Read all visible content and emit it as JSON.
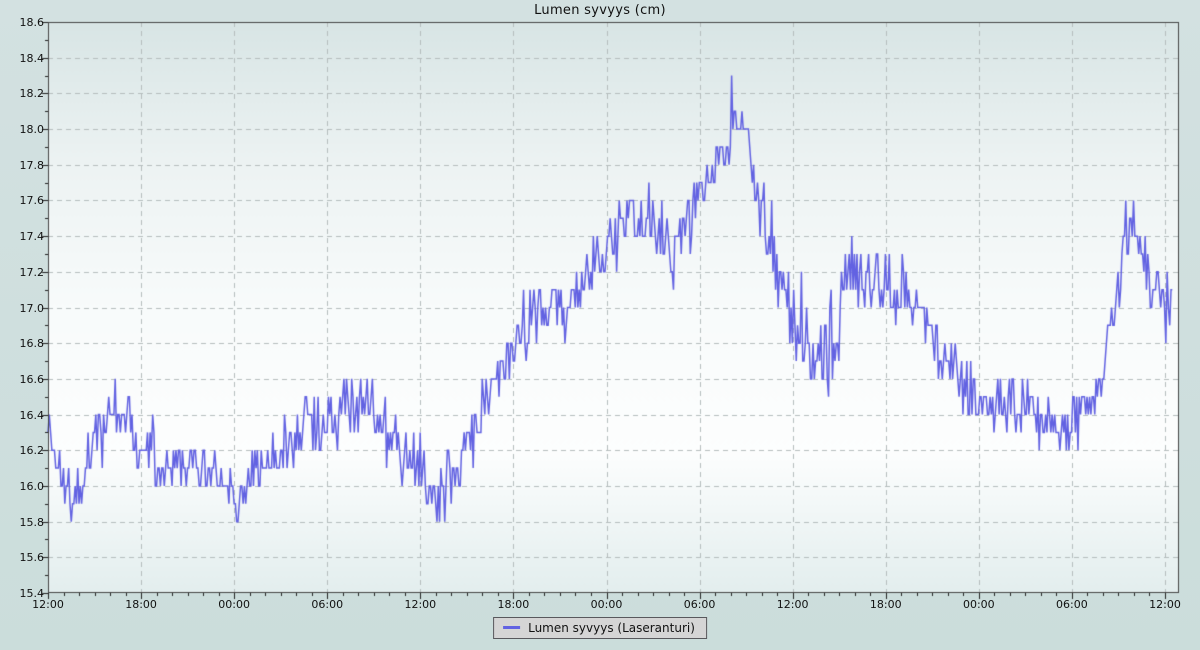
{
  "chart_data": {
    "type": "line",
    "title": "Lumen syvyys (cm)",
    "xlabel": "",
    "ylabel": "",
    "ylim": [
      15.4,
      18.6
    ],
    "y_major_step": 0.2,
    "y_minor_step": 0.1,
    "y_tick_labels": [
      "15.4",
      "15.6",
      "15.8",
      "16.0",
      "16.2",
      "16.4",
      "16.6",
      "16.8",
      "17.0",
      "17.2",
      "17.4",
      "17.6",
      "17.8",
      "18.0",
      "18.2",
      "18.4",
      "18.6"
    ],
    "xlim_hours": [
      0,
      72.9
    ],
    "x_major_step_hours": 6,
    "x_minor_step_hours": 1,
    "x_tick_hours": [
      0,
      6,
      12,
      18,
      24,
      30,
      36,
      42,
      48,
      54,
      60,
      66,
      72
    ],
    "x_tick_labels": [
      "12:00",
      "18:00",
      "00:00",
      "06:00",
      "12:00",
      "18:00",
      "00:00",
      "06:00",
      "12:00",
      "18:00",
      "00:00",
      "06:00",
      "12:00"
    ],
    "grid": {
      "color": "#b5bdbd",
      "dash": [
        5,
        4
      ],
      "show": true
    },
    "frame_color": "#454545",
    "tick_color": "#222222",
    "plot_bg_gradient": [
      "#d8e5e5",
      "#edf3f3",
      "#f8fbfb",
      "#fdfefe",
      "#e3eeee"
    ],
    "legend_position": "bottom-center",
    "series": [
      {
        "name": "Lumen syvyys (Laseranturi)",
        "color": "#6262e2",
        "quantization_cm": 0.1,
        "sample_interval_hours": 0.0833,
        "data_end_hours": 72.5,
        "anchors": {
          "t_hours": [
            0,
            1,
            1.5,
            2,
            3,
            4,
            5,
            6,
            7,
            8,
            9,
            10,
            11,
            12,
            12.4,
            13,
            14,
            15,
            16,
            17,
            18,
            19,
            20,
            20.8,
            21,
            22,
            23,
            24,
            25,
            26,
            26.3,
            27,
            28,
            29,
            30,
            31,
            32,
            33,
            34,
            35,
            36,
            37,
            38,
            39,
            40,
            40.5,
            41,
            42,
            43,
            44,
            44.3,
            45,
            46,
            47,
            48,
            49,
            50,
            51,
            51.6,
            52,
            53,
            54,
            55,
            56,
            57,
            58,
            59,
            60,
            61,
            62,
            63,
            64,
            65,
            66,
            67,
            68,
            68.5,
            69,
            69.5,
            70,
            71,
            72,
            72.5
          ],
          "mean_cm": [
            16.32,
            16.0,
            15.9,
            15.98,
            16.25,
            16.38,
            16.42,
            16.25,
            16.15,
            16.12,
            16.1,
            16.1,
            16.05,
            15.98,
            15.88,
            16.1,
            16.15,
            16.2,
            16.25,
            16.3,
            16.38,
            16.42,
            16.42,
            16.5,
            16.42,
            16.35,
            16.2,
            16.08,
            16.02,
            16.05,
            15.95,
            16.28,
            16.45,
            16.6,
            16.75,
            16.95,
            16.95,
            17.0,
            17.05,
            17.18,
            17.35,
            17.48,
            17.52,
            17.5,
            17.3,
            17.25,
            17.45,
            17.62,
            17.82,
            18.0,
            18.05,
            17.92,
            17.55,
            17.15,
            16.85,
            16.8,
            16.75,
            16.95,
            17.3,
            17.1,
            17.15,
            17.15,
            17.1,
            17.02,
            16.88,
            16.72,
            16.6,
            16.5,
            16.5,
            16.45,
            16.45,
            16.4,
            16.3,
            16.35,
            16.42,
            16.62,
            16.9,
            17.2,
            17.5,
            17.45,
            17.22,
            17.0,
            17.05
          ],
          "noise_half_range_cm": [
            0.12,
            0.15,
            0.13,
            0.12,
            0.15,
            0.15,
            0.14,
            0.12,
            0.14,
            0.15,
            0.13,
            0.14,
            0.12,
            0.16,
            0.15,
            0.13,
            0.14,
            0.14,
            0.15,
            0.16,
            0.15,
            0.16,
            0.15,
            0.18,
            0.17,
            0.16,
            0.15,
            0.16,
            0.18,
            0.18,
            0.2,
            0.15,
            0.16,
            0.17,
            0.15,
            0.16,
            0.14,
            0.14,
            0.15,
            0.17,
            0.15,
            0.16,
            0.14,
            0.14,
            0.18,
            0.16,
            0.14,
            0.14,
            0.15,
            0.18,
            0.2,
            0.14,
            0.18,
            0.22,
            0.28,
            0.26,
            0.26,
            0.22,
            0.24,
            0.2,
            0.17,
            0.14,
            0.14,
            0.14,
            0.14,
            0.13,
            0.13,
            0.14,
            0.13,
            0.15,
            0.13,
            0.13,
            0.15,
            0.13,
            0.13,
            0.16,
            0.16,
            0.16,
            0.15,
            0.13,
            0.16,
            0.13,
            0.1
          ]
        },
        "observed_extremes": {
          "max_cm": 18.3,
          "max_at_hours": 44.1,
          "min_cm": 15.7,
          "min_at_hours": 12.3
        }
      }
    ]
  },
  "legend": {
    "label": "Lumen syvyys (Laseranturi)",
    "bg": "#d5d5d5",
    "border": "#58585c"
  }
}
